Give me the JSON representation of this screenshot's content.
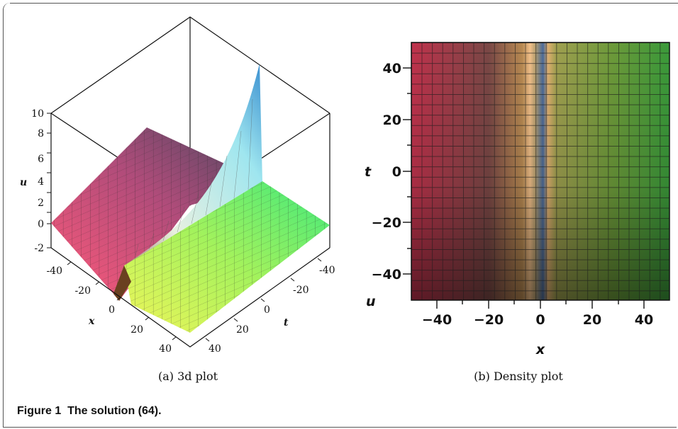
{
  "figure": {
    "caption_label": "Figure 1",
    "caption_text": "The solution (64)."
  },
  "panel_a": {
    "caption": "(a) 3d plot",
    "u_label": "u",
    "x_label": "x",
    "t_label": "t",
    "u_ticks": [
      "10",
      "8",
      "6",
      "4",
      "2",
      "0",
      "-2"
    ],
    "x_ticks": [
      "-40",
      "-20",
      "0",
      "20",
      "40"
    ],
    "t_ticks": [
      "-40",
      "-20",
      "0",
      "20",
      "40"
    ]
  },
  "panel_b": {
    "caption": "(b) Density plot",
    "t_label": "t",
    "x_label": "x",
    "u_label": "u",
    "t_ticks": [
      "40",
      "20",
      "0",
      "−20",
      "−40"
    ],
    "x_ticks": [
      "−40",
      "−20",
      "0",
      "20",
      "40"
    ]
  }
}
